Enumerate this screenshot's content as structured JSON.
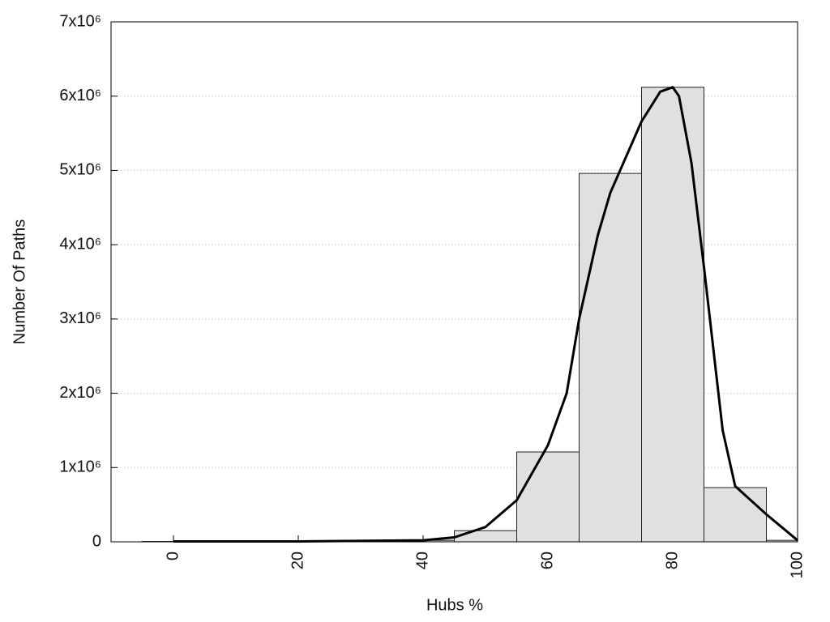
{
  "chart_data": {
    "type": "histogram",
    "x_label": "Hubs %",
    "y_label": "Number Of Paths",
    "bins": [
      -5,
      5,
      15,
      25,
      35,
      45,
      55,
      65,
      75,
      85,
      95,
      100
    ],
    "values": [
      5000,
      5000,
      5000,
      10000,
      20000,
      150000,
      1210000,
      4960000,
      6120000,
      730000,
      20000
    ],
    "color": "#e0e0e0",
    "edge_color": "#222222",
    "curve": {
      "type": "line",
      "color": "#000000",
      "x": [
        0,
        20,
        40,
        45,
        50,
        55,
        60,
        63,
        65,
        68,
        70,
        75,
        78,
        80,
        81,
        83,
        85,
        88,
        90,
        95,
        100
      ],
      "values": [
        5000,
        5000,
        20000,
        60000,
        200000,
        560000,
        1300000,
        2000000,
        3000000,
        4130000,
        4700000,
        5660000,
        6060000,
        6120000,
        6000000,
        5100000,
        3700000,
        1500000,
        750000,
        370000,
        20000
      ]
    },
    "xlim": [
      -10,
      100
    ],
    "ylim": [
      0,
      7000000
    ],
    "xticks": [
      0,
      20,
      40,
      60,
      80,
      100
    ],
    "yticks": [
      0,
      {
        "value": 1000000,
        "label": "1x10⁶"
      },
      {
        "value": 2000000,
        "label": "2x10⁶"
      },
      {
        "value": 3000000,
        "label": "3x10⁶"
      },
      {
        "value": 4000000,
        "label": "4x10⁶"
      },
      {
        "value": 5000000,
        "label": "5x10⁶"
      },
      {
        "value": 6000000,
        "label": "6x10⁶"
      },
      {
        "value": 7000000,
        "label": "7x10⁶"
      }
    ],
    "grid": true
  }
}
